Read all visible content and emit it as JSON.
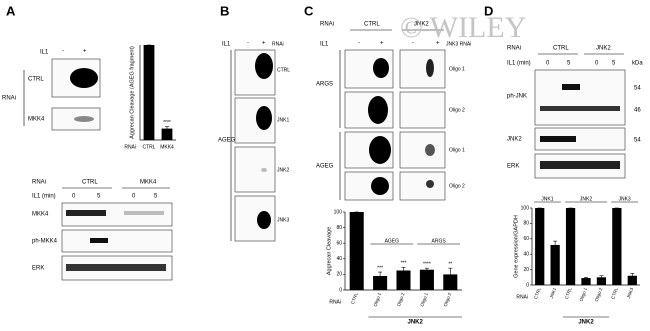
{
  "watermark": "© WILEY",
  "panel_a": {
    "label": "A",
    "il1": "IL1",
    "minus": "-",
    "plus": "+",
    "rows": [
      "CTRL",
      "MKK4"
    ],
    "rnai": "RNAi",
    "blot": {
      "rnai": "RNAi",
      "groups": [
        "CTRL",
        "MKK4"
      ],
      "il1": "IL1 (min)",
      "times": [
        0,
        5,
        0,
        5
      ],
      "rows": [
        "MKK4",
        "ph-MKK4",
        "ERK"
      ]
    }
  },
  "panel_b": {
    "label": "B",
    "il1": "IL1",
    "minus": "-",
    "plus": "+",
    "rnai": "RNAi",
    "fragment": "AGEG",
    "rows": [
      "CTRL",
      "JNK1",
      "JNK2",
      "JNK3"
    ]
  },
  "panel_c": {
    "label": "C",
    "rnai": "RNAi",
    "groups": [
      "CTRL",
      "JNK2"
    ],
    "overlay": "JNK3 RNAi",
    "il1": "IL1",
    "signs": [
      "-",
      "+",
      "-",
      "+"
    ],
    "sections": [
      {
        "name": "ARGS",
        "rows": [
          "Oligo 1",
          "Oligo 2"
        ]
      },
      {
        "name": "AGEG",
        "rows": [
          "Oligo 1",
          "Oligo 2"
        ]
      }
    ]
  },
  "panel_d": {
    "label": "D",
    "rnai": "RNAi",
    "groups": [
      "CTRL",
      "JNK2"
    ],
    "il1": "IL1 (min)",
    "times": [
      0,
      5,
      0,
      5
    ],
    "kda": "kDa",
    "rows": [
      "ph-JNK",
      "JNK2",
      "ERK"
    ],
    "markers": [
      54,
      46,
      54
    ]
  },
  "chart_data": [
    {
      "type": "bar",
      "ylabel": "Aggrecan Cleavage (AGEG fragment)",
      "xlabel": "RNAi",
      "categories": [
        "CTRL",
        "MKK4"
      ],
      "values": [
        100,
        12
      ],
      "errors": [
        0,
        2
      ],
      "significance": [
        null,
        "****"
      ],
      "color": "#000000",
      "ylim": [
        0,
        100
      ]
    },
    {
      "type": "bar",
      "ylabel": "Aggrecan Cleavage",
      "xlabel": "RNAi",
      "categories": [
        "CTRL",
        "Oligo 1",
        "Oligo 2",
        "Oligo 1",
        "Oligo 2"
      ],
      "group_labels": [
        "AGEG",
        "ARGS"
      ],
      "footer": "JNK2",
      "values": [
        100,
        18,
        25,
        26,
        20
      ],
      "errors": [
        0,
        5,
        4,
        2,
        8
      ],
      "significance": [
        null,
        "***",
        "***",
        "****",
        "**"
      ],
      "color": "#000000",
      "ylim": [
        0,
        100
      ],
      "yticks": [
        0,
        20,
        40,
        60,
        80,
        100
      ]
    },
    {
      "type": "bar",
      "ylabel": "Gene expression/GAPDH",
      "xlabel": "RNAi",
      "categories": [
        "CTRL",
        "JNK1",
        "CTRL",
        "Oligo 1",
        "Oligo 2",
        "CTRL",
        "JNK3"
      ],
      "group_labels": [
        "JNK1",
        "JNK2",
        "JNK3"
      ],
      "footer": "JNK2",
      "values": [
        100,
        52,
        100,
        9,
        10,
        100,
        12
      ],
      "errors": [
        0,
        5,
        0,
        1,
        2,
        0,
        3
      ],
      "color": "#000000",
      "ylim": [
        0,
        100
      ],
      "yticks": [
        0,
        20,
        40,
        60,
        80,
        100
      ]
    }
  ]
}
